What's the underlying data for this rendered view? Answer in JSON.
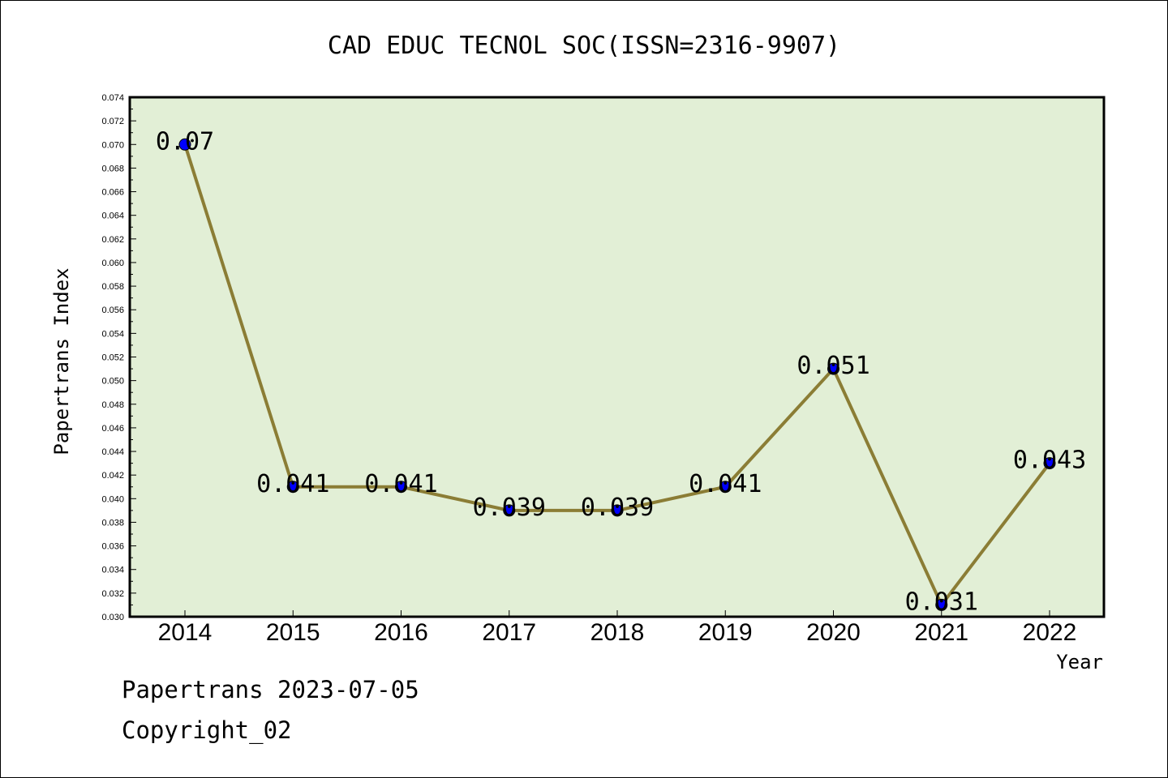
{
  "chart_data": {
    "type": "line",
    "title": "CAD EDUC TECNOL SOC(ISSN=2316-9907)",
    "xlabel": "Year",
    "ylabel": "Papertrans Index",
    "categories": [
      "2014",
      "2015",
      "2016",
      "2017",
      "2018",
      "2019",
      "2020",
      "2021",
      "2022"
    ],
    "values": [
      0.07,
      0.041,
      0.041,
      0.039,
      0.039,
      0.041,
      0.051,
      0.031,
      0.043
    ],
    "data_labels": [
      "0.07",
      "0.041",
      "0.041",
      "0.039",
      "0.039",
      "0.041",
      "0.051",
      "0.031",
      "0.043"
    ],
    "ylim": [
      0.03,
      0.074
    ],
    "y_ticks": [
      "0.030",
      "0.032",
      "0.034",
      "0.036",
      "0.038",
      "0.040",
      "0.042",
      "0.044",
      "0.046",
      "0.048",
      "0.050",
      "0.052",
      "0.054",
      "0.056",
      "0.058",
      "0.060",
      "0.062",
      "0.064",
      "0.066",
      "0.068",
      "0.070",
      "0.072",
      "0.074"
    ],
    "grid": false,
    "colors": {
      "plot_bg": "#e2efd6",
      "line": "#8b7d35",
      "marker": "#0000ff",
      "frame": "#000000"
    }
  },
  "footer": {
    "line1": "Papertrans 2023-07-05",
    "line2": "Copyright_02"
  }
}
